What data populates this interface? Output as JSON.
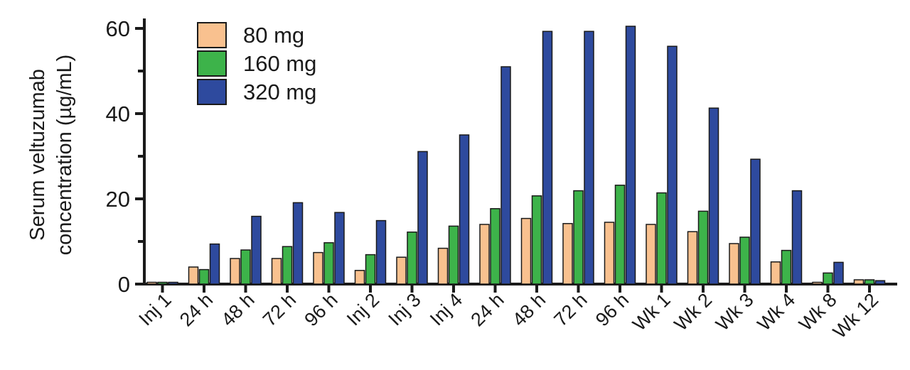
{
  "chart_data": {
    "type": "bar",
    "title": "",
    "xlabel": "",
    "ylabel": [
      "Serum veltuzumab",
      "concentration (µg/mL)"
    ],
    "ylim": [
      0,
      60
    ],
    "yticks": [
      0,
      20,
      40,
      60
    ],
    "grid": false,
    "legend_position": "top-left",
    "categories": [
      "Inj 1",
      "24 h",
      "48 h",
      "72 h",
      "96 h",
      "Inj 2",
      "Inj 3",
      "Inj 4",
      "24 h",
      "48 h",
      "72 h",
      "96 h",
      "Wk 1",
      "Wk 2",
      "Wk 3",
      "Wk 4",
      "Wk 8",
      "Wk 12"
    ],
    "series": [
      {
        "name": "80 mg",
        "color": "#F9C18F",
        "values": [
          0.3,
          4.0,
          6.0,
          6.0,
          7.4,
          3.2,
          6.3,
          8.4,
          14.0,
          15.4,
          14.2,
          14.5,
          14.0,
          12.3,
          9.5,
          5.2,
          0.3,
          1.0
        ]
      },
      {
        "name": "160 mg",
        "color": "#3DB34A",
        "values": [
          0.3,
          3.4,
          8.0,
          8.8,
          9.7,
          6.9,
          12.2,
          13.6,
          17.7,
          20.7,
          21.9,
          23.2,
          21.4,
          17.1,
          11.0,
          7.9,
          2.6,
          1.0
        ]
      },
      {
        "name": "320 mg",
        "color": "#2E4A9E",
        "values": [
          0.3,
          9.4,
          15.9,
          19.1,
          16.8,
          14.9,
          31.1,
          35.0,
          51.0,
          59.3,
          59.3,
          60.5,
          55.8,
          41.3,
          29.3,
          21.9,
          5.1,
          0.8
        ]
      }
    ]
  }
}
